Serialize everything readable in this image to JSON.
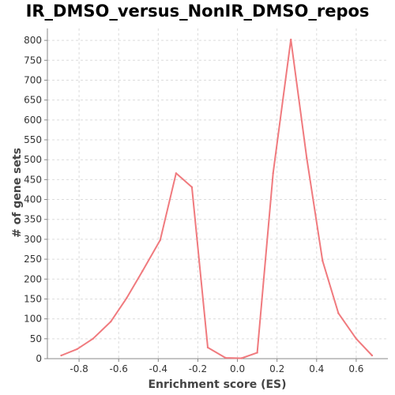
{
  "chart_data": {
    "type": "line",
    "title": "IR_DMSO_versus_NonIR_DMSO_repos",
    "xlabel": "Enrichment score (ES)",
    "ylabel": "# of gene sets",
    "xlim": [
      -0.96,
      0.76
    ],
    "ylim": [
      0,
      830
    ],
    "x_ticks": [
      -0.8,
      -0.6,
      -0.4,
      -0.2,
      0.0,
      0.2,
      0.4,
      0.6
    ],
    "x_tick_labels": [
      "-0.8",
      "-0.6",
      "-0.4",
      "-0.2",
      "0.0",
      "0.2",
      "0.4",
      "0.6"
    ],
    "y_ticks": [
      0,
      50,
      100,
      150,
      200,
      250,
      300,
      350,
      400,
      450,
      500,
      550,
      600,
      650,
      700,
      750,
      800
    ],
    "y_tick_labels": [
      "0",
      "50",
      "100",
      "150",
      "200",
      "250",
      "300",
      "350",
      "400",
      "450",
      "500",
      "550",
      "600",
      "650",
      "700",
      "750",
      "800"
    ],
    "grid": true,
    "color": "#f07a7e",
    "series": [
      {
        "x": [
          -0.89,
          -0.81,
          -0.73,
          -0.64,
          -0.56,
          -0.48,
          -0.39,
          -0.31,
          -0.23,
          -0.15,
          -0.06,
          0.02,
          0.1,
          0.18,
          0.27,
          0.35,
          0.43,
          0.51,
          0.6,
          0.68
        ],
        "values": [
          8,
          24,
          50,
          93,
          152,
          220,
          298,
          466,
          431,
          28,
          2,
          1,
          15,
          466,
          802,
          504,
          246,
          114,
          50,
          8
        ]
      }
    ]
  }
}
